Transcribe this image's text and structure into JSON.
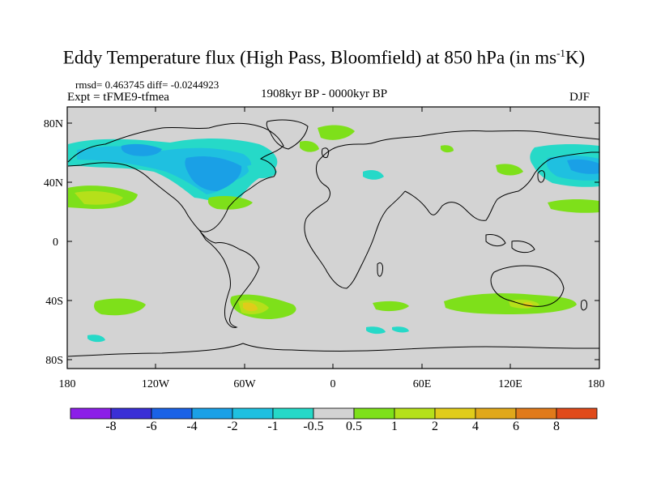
{
  "title": {
    "main": "Eddy Temperature flux (High Pass, Bloomfield) at 850 hPa (in ms",
    "sup": "-1",
    "tail": "K)"
  },
  "stats": "rmsd= 0.463745 diff= -0.0244923",
  "experiment": "Expt = tFME9-tfmea",
  "period": "1908kyr BP - 0000kyr BP",
  "season": "DJF",
  "map": {
    "lat_labels": [
      "80N",
      "40N",
      "0",
      "40S",
      "80S"
    ],
    "lon_labels": [
      "180",
      "120W",
      "60W",
      "0",
      "60E",
      "120E",
      "180"
    ],
    "ocean_color": "#d3d3d3",
    "anomaly_regions": [
      {
        "name": "n-pacific-west",
        "color": "#1fc0e0"
      },
      {
        "name": "n-america-storm-track",
        "color": "#1aa0e6"
      },
      {
        "name": "subtropical-pacific",
        "color": "#b5e01a"
      },
      {
        "name": "southern-ocean",
        "color": "#7ee01a"
      }
    ]
  },
  "colorbar": {
    "labels": [
      "-8",
      "-6",
      "-4",
      "-2",
      "-1",
      "-0.5",
      "0.5",
      "1",
      "2",
      "4",
      "6",
      "8"
    ],
    "colors": [
      "#8c1fe8",
      "#3a2fd6",
      "#1a62e6",
      "#1aa0e6",
      "#1fc0e0",
      "#26d9c8",
      "#d3d3d3",
      "#7ee01a",
      "#b5e01a",
      "#e0cc1a",
      "#e0a81a",
      "#e07a1a",
      "#e04a1a"
    ]
  }
}
